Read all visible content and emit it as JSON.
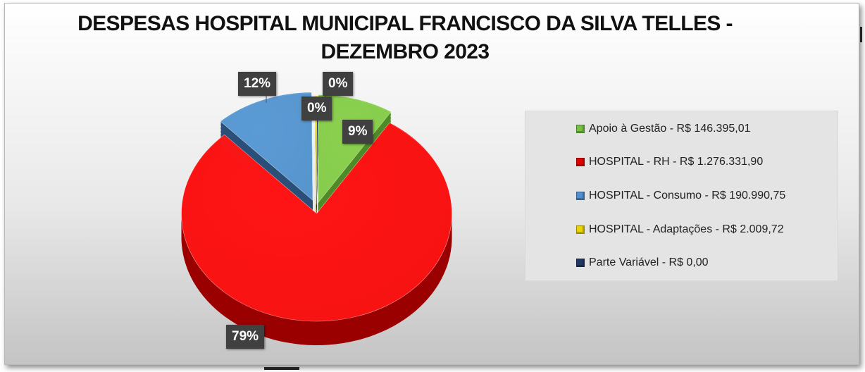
{
  "title": "DESPESAS HOSPITAL MUNICIPAL FRANCISCO DA SILVA TELLES - DEZEMBRO 2023",
  "chart_data": {
    "type": "pie",
    "title": "DESPESAS HOSPITAL MUNICIPAL FRANCISCO DA SILVA TELLES - DEZEMBRO 2023",
    "slices": [
      {
        "name": "Apoio à Gestão - R$ 146.395,01",
        "value": 146395.01,
        "label": "9%",
        "color": "#8bd14f",
        "dark": "#4f8a28"
      },
      {
        "name": "HOSPITAL - RH - R$ 1.276.331,90",
        "value": 1276331.9,
        "label": "79%",
        "color": "#ff1414",
        "dark": "#9a0000"
      },
      {
        "name": "HOSPITAL - Consumo - R$ 190.990,75",
        "value": 190990.75,
        "label": "12%",
        "color": "#5b9bd5",
        "dark": "#2a4f78"
      },
      {
        "name": "HOSPITAL - Adaptações - R$ 2.009,72",
        "value": 2009.72,
        "label": "0%",
        "color": "#f0e000",
        "dark": "#8a8000"
      },
      {
        "name": "Parte Variável - R$ 0,00",
        "value": 0.0,
        "label": "0%",
        "color": "#1f3864",
        "dark": "#0f1c33"
      }
    ],
    "legend_position": "right"
  },
  "legend": [
    {
      "label": "Apoio à Gestão - R$ 146.395,01",
      "color": "#76c043"
    },
    {
      "label": "HOSPITAL - RH - R$ 1.276.331,90",
      "color": "#e00000"
    },
    {
      "label": "HOSPITAL - Consumo - R$ 190.990,75",
      "color": "#4f8fcf"
    },
    {
      "label": "HOSPITAL - Adaptações - R$ 2.009,72",
      "color": "#e8d400"
    },
    {
      "label": "Parte Variável - R$ 0,00",
      "color": "#1f3864"
    }
  ],
  "data_labels": [
    "9%",
    "79%",
    "12%",
    "0%",
    "0%"
  ]
}
